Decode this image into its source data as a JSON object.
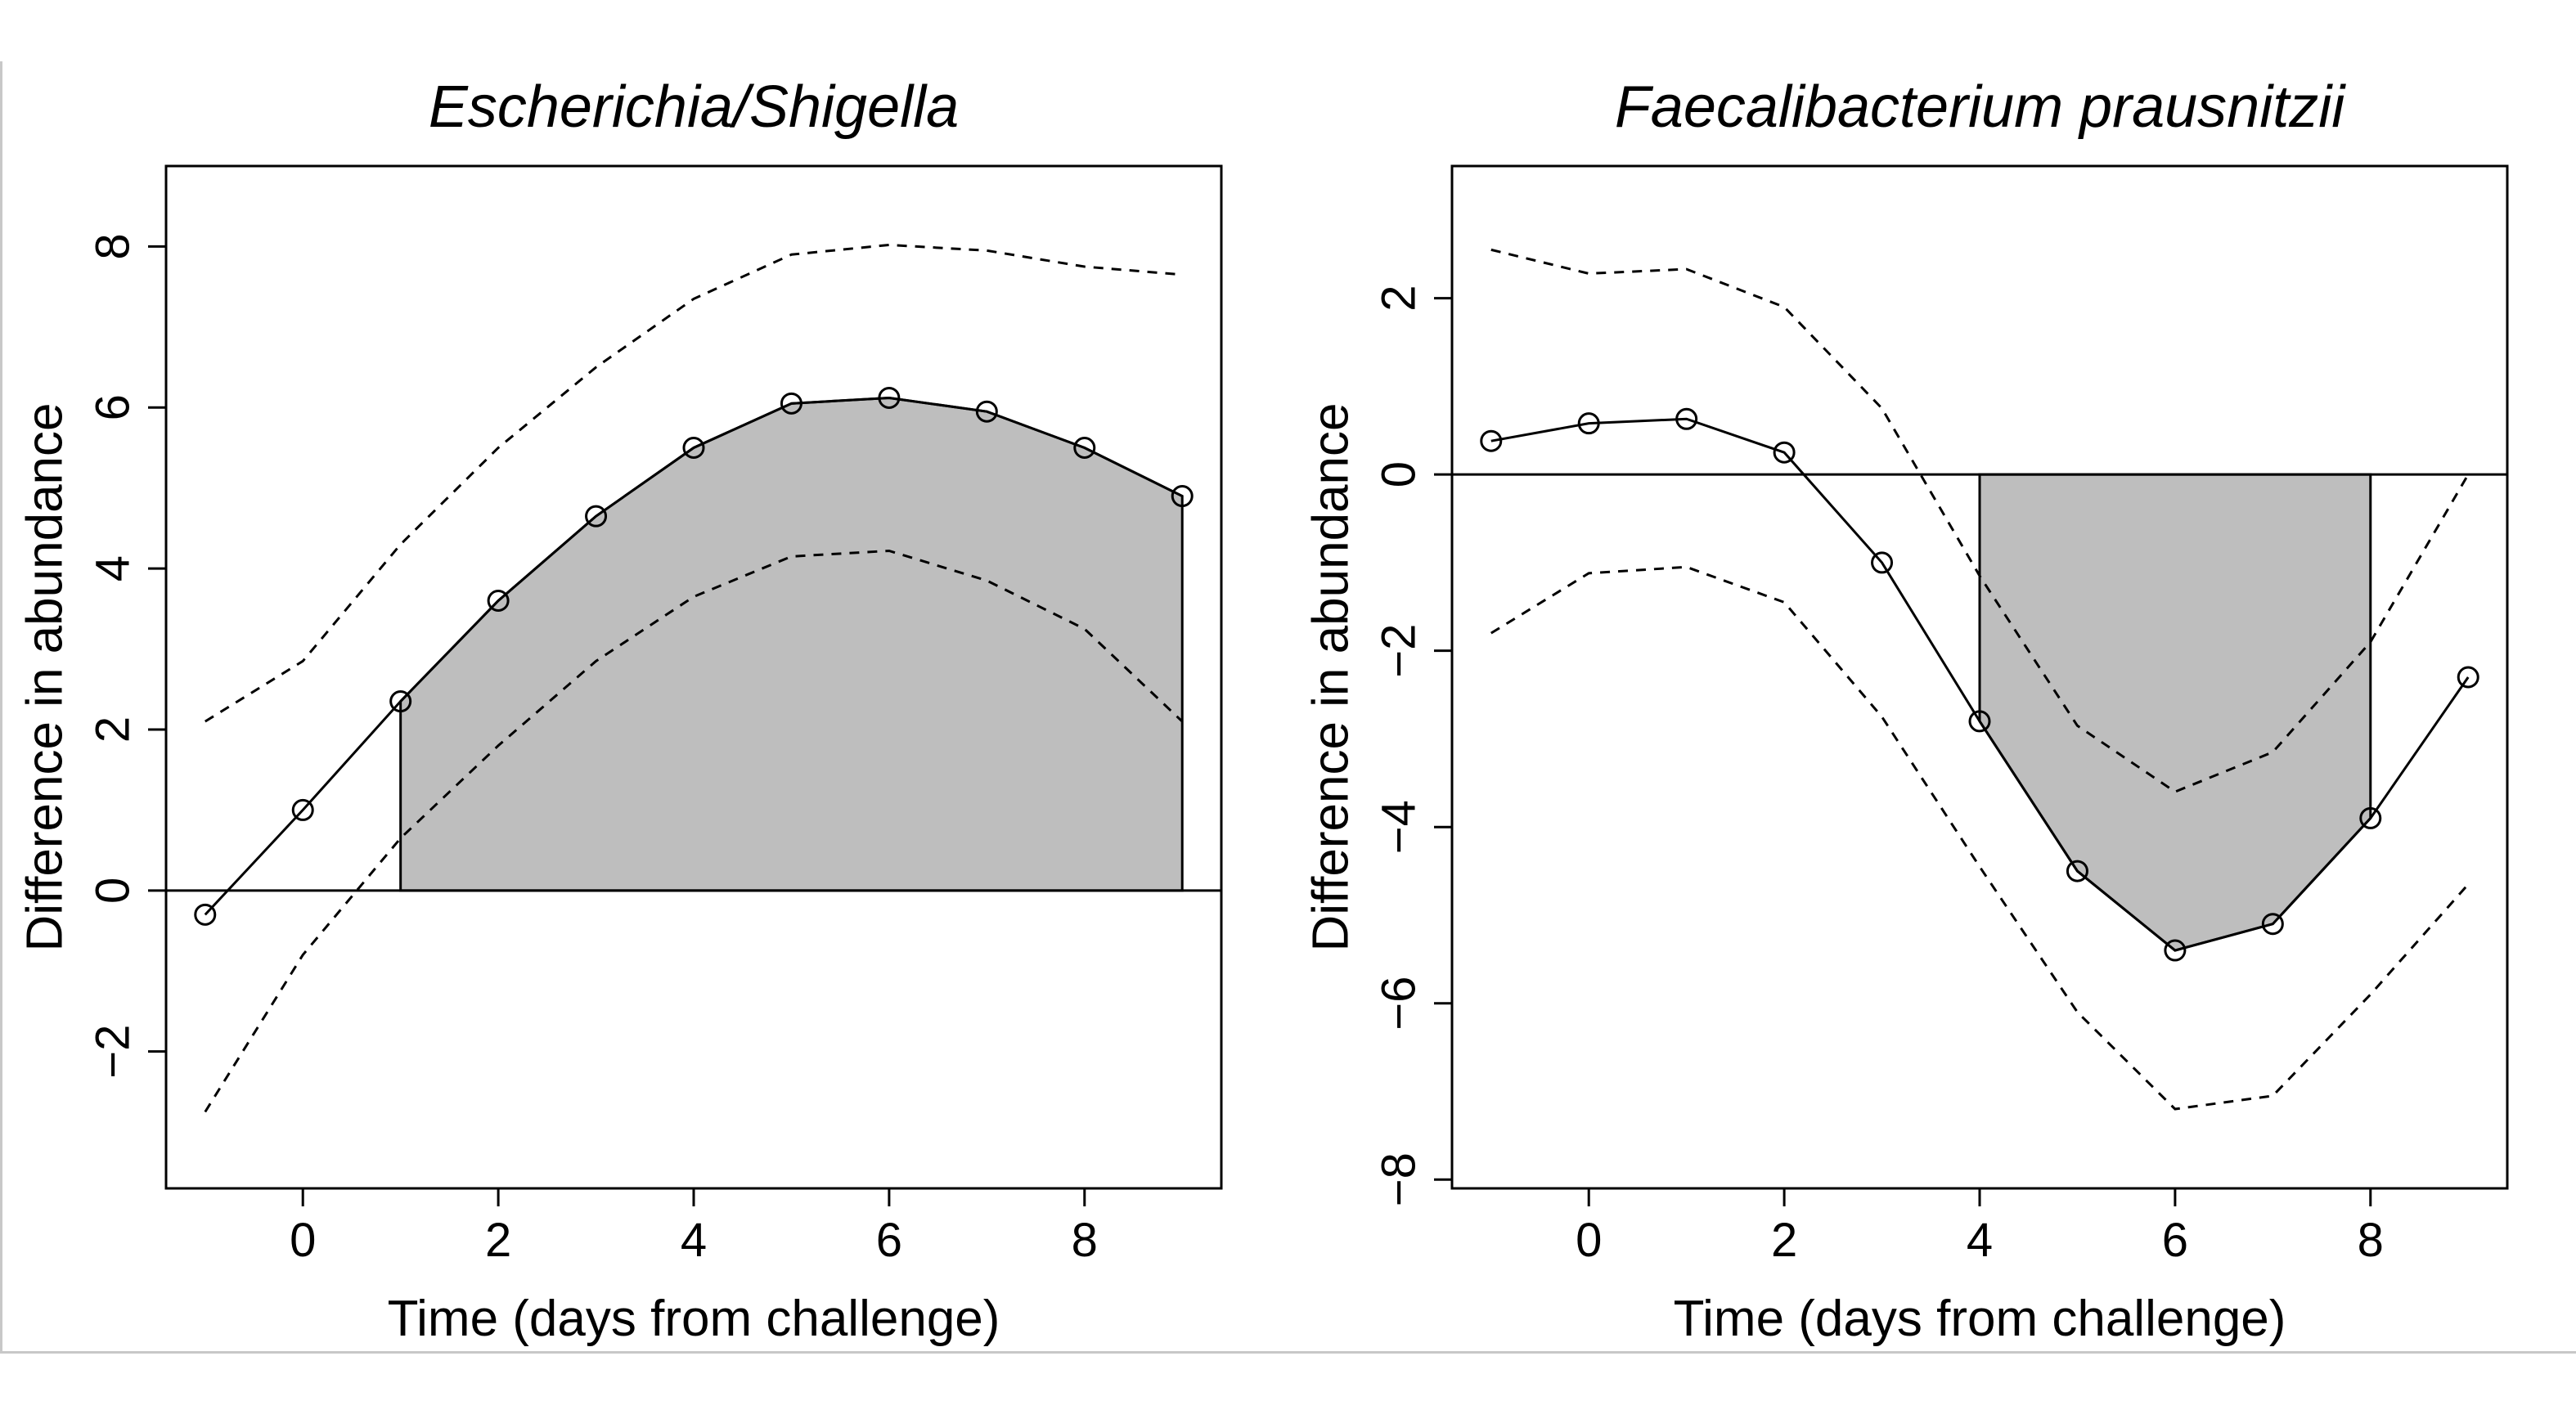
{
  "chart_data": [
    {
      "type": "line",
      "title": "Escherichia/Shigella",
      "xlabel": "Time (days from challenge)",
      "ylabel": "Difference in abundance",
      "xlim": [
        -1.4,
        9.4
      ],
      "ylim": [
        -3.7,
        9.0
      ],
      "xticks": [
        0,
        2,
        4,
        6,
        8
      ],
      "yticks": [
        -2,
        0,
        2,
        4,
        6,
        8
      ],
      "grid": false,
      "reference_line_y": 0,
      "shaded_interval": [
        1,
        9
      ],
      "series": [
        {
          "style": "solid-with-circles",
          "x": [
            -1,
            0,
            1,
            2,
            3,
            4,
            5,
            6,
            7,
            8,
            9
          ],
          "y": [
            -0.3,
            1.0,
            2.35,
            3.6,
            4.65,
            5.5,
            6.05,
            6.12,
            5.95,
            5.5,
            4.9
          ]
        },
        {
          "style": "dashed",
          "x": [
            -1,
            0,
            1,
            2,
            3,
            4,
            5,
            6,
            7,
            8,
            9
          ],
          "y": [
            2.1,
            2.85,
            4.3,
            5.5,
            6.5,
            7.35,
            7.9,
            8.02,
            7.95,
            7.75,
            7.65
          ]
        },
        {
          "style": "dashed",
          "x": [
            -1,
            0,
            1,
            2,
            3,
            4,
            5,
            6,
            7,
            8,
            9
          ],
          "y": [
            -2.75,
            -0.8,
            0.65,
            1.8,
            2.85,
            3.65,
            4.15,
            4.22,
            3.85,
            3.25,
            2.1
          ]
        }
      ]
    },
    {
      "type": "line",
      "title": "Faecalibacterium prausnitzii",
      "xlabel": "Time (days from challenge)",
      "ylabel": "Difference in abundance",
      "xlim": [
        -1.4,
        9.4
      ],
      "ylim": [
        -8.1,
        3.5
      ],
      "xticks": [
        0,
        2,
        4,
        6,
        8
      ],
      "yticks": [
        -8,
        -6,
        -4,
        -2,
        0,
        2
      ],
      "grid": false,
      "reference_line_y": 0,
      "shaded_interval": [
        4,
        8
      ],
      "series": [
        {
          "style": "solid-with-circles",
          "x": [
            -1,
            0,
            1,
            2,
            3,
            4,
            5,
            6,
            7,
            8,
            9
          ],
          "y": [
            0.38,
            0.58,
            0.63,
            0.25,
            -1.0,
            -2.8,
            -4.5,
            -5.4,
            -5.1,
            -3.9,
            -2.3
          ]
        },
        {
          "style": "dashed",
          "x": [
            -1,
            0,
            1,
            2,
            3,
            4,
            5,
            6,
            7,
            8,
            9
          ],
          "y": [
            2.55,
            2.28,
            2.33,
            1.9,
            0.75,
            -1.15,
            -2.85,
            -3.6,
            -3.15,
            -1.9,
            0.0
          ]
        },
        {
          "style": "dashed",
          "x": [
            -1,
            0,
            1,
            2,
            3,
            4,
            5,
            6,
            7,
            8,
            9
          ],
          "y": [
            -1.8,
            -1.12,
            -1.05,
            -1.45,
            -2.75,
            -4.45,
            -6.1,
            -7.2,
            -7.05,
            -5.9,
            -4.65
          ]
        }
      ]
    }
  ],
  "colors": {
    "shade": "#bebebe",
    "line": "#000000",
    "background": "#ffffff",
    "frame": "#c8c8c8"
  }
}
